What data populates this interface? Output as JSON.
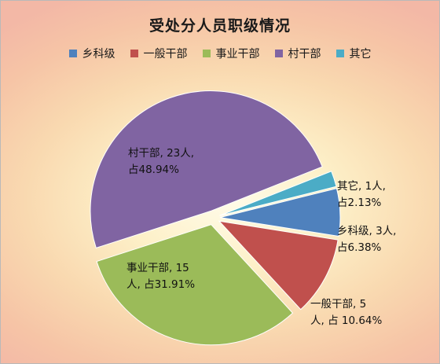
{
  "chart_data": {
    "type": "pie",
    "title": "受处分人员职级情况",
    "legend_position": "top",
    "legend": [
      "乡科级",
      "一般干部",
      "事业干部",
      "村干部",
      "其它"
    ],
    "slices": [
      {
        "name": "乡科级",
        "value": 3,
        "percent": 6.38,
        "color": "#4f81bd",
        "label": "乡科级, 3人,\n占6.38%"
      },
      {
        "name": "一般干部",
        "value": 5,
        "percent": 10.64,
        "color": "#c0504d",
        "label": "一般干部, 5\n人, 占 10.64%"
      },
      {
        "name": "事业干部",
        "value": 15,
        "percent": 31.91,
        "color": "#9bbb59",
        "label": "事业干部, 15\n人, 占31.91%"
      },
      {
        "name": "村干部",
        "value": 23,
        "percent": 48.94,
        "color": "#8064a2",
        "label": "村干部, 23人,\n占48.94%"
      },
      {
        "name": "其它",
        "value": 1,
        "percent": 2.13,
        "color": "#4bacc6",
        "label": "其它, 1人,\n占2.13%"
      }
    ]
  }
}
